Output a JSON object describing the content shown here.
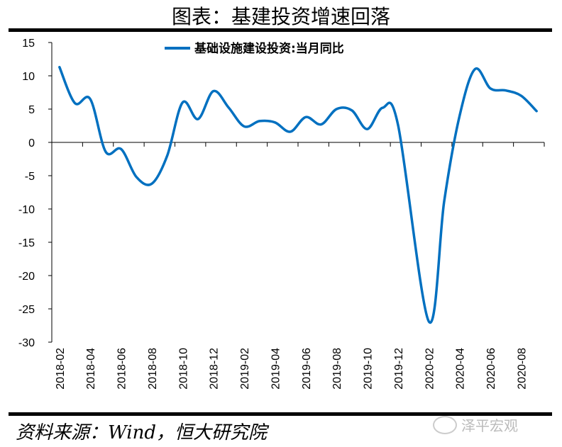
{
  "title": "图表：基建投资增速回落",
  "source": "资料来源：Wind，恒大研究院",
  "watermark": "泽平宏观",
  "chart_data": {
    "type": "line",
    "title": "",
    "xlabel": "",
    "ylabel": "",
    "ylim": [
      -30,
      15
    ],
    "yticks": [
      15,
      10,
      5,
      0,
      -5,
      -10,
      -15,
      -20,
      -25,
      -30
    ],
    "grid": false,
    "legend_placement": "top-center",
    "x": [
      "2018-02",
      "2018-03",
      "2018-04",
      "2018-05",
      "2018-06",
      "2018-07",
      "2018-08",
      "2018-09",
      "2018-10",
      "2018-11",
      "2018-12",
      "2019-01",
      "2019-02",
      "2019-03",
      "2019-04",
      "2019-05",
      "2019-06",
      "2019-07",
      "2019-08",
      "2019-09",
      "2019-10",
      "2019-11",
      "2019-12",
      "2020-01",
      "2020-02",
      "2020-03",
      "2020-04",
      "2020-05",
      "2020-06",
      "2020-07",
      "2020-08",
      "2020-09"
    ],
    "xtick_labels": [
      "2018-02",
      "2018-04",
      "2018-06",
      "2018-08",
      "2018-10",
      "2018-12",
      "2019-02",
      "2019-04",
      "2019-06",
      "2019-08",
      "2019-10",
      "2019-12",
      "2020-02",
      "2020-04",
      "2020-06",
      "2020-08"
    ],
    "series": [
      {
        "name": "基础设施建设投资:当月同比",
        "color": "#0070C0",
        "values": [
          11.3,
          5.9,
          6.5,
          -1.4,
          -1.0,
          -5.2,
          -6.2,
          -2.0,
          6.0,
          3.5,
          7.7,
          5.2,
          2.4,
          3.2,
          3.0,
          1.6,
          3.8,
          2.7,
          5.0,
          4.8,
          2.0,
          5.2,
          2.6,
          null,
          -26.9,
          -8.8,
          4.0,
          11.0,
          8.1,
          7.8,
          7.0,
          4.7
        ]
      }
    ]
  }
}
